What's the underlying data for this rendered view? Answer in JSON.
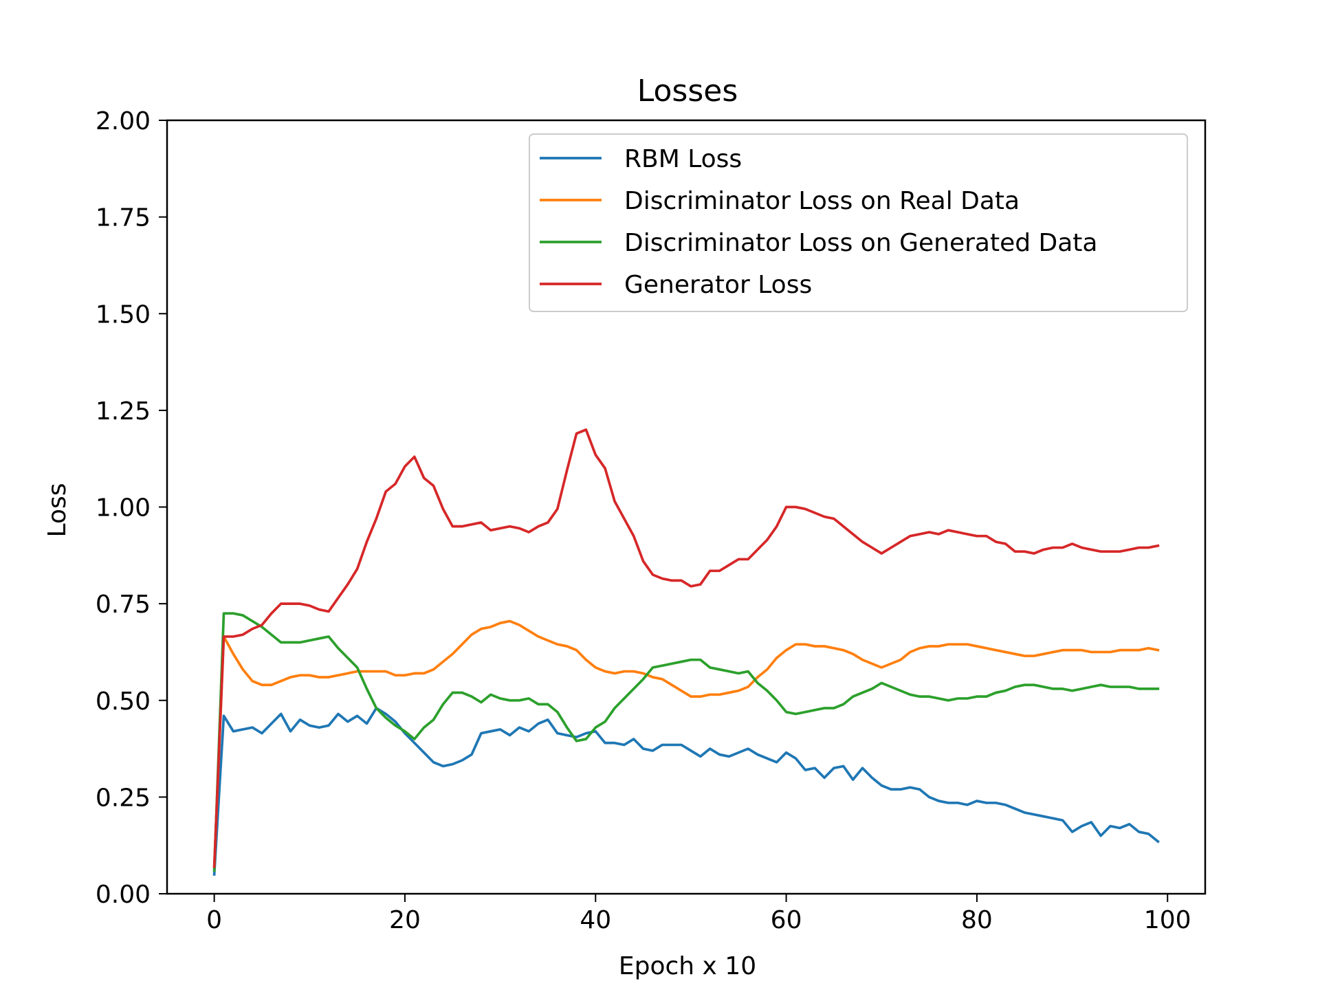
{
  "chart_data": {
    "type": "line",
    "title": "Losses",
    "xlabel": "Epoch x 10",
    "ylabel": "Loss",
    "xlim": [
      -4.95,
      103.95
    ],
    "ylim": [
      0,
      2
    ],
    "xticks": [
      0,
      20,
      40,
      60,
      80,
      100
    ],
    "yticks": [
      0.0,
      0.25,
      0.5,
      0.75,
      1.0,
      1.25,
      1.5,
      1.75,
      2.0
    ],
    "ytick_labels": [
      "0.00",
      "0.25",
      "0.50",
      "0.75",
      "1.00",
      "1.25",
      "1.50",
      "1.75",
      "2.00"
    ],
    "grid": false,
    "legend_position": "upper-right",
    "series": [
      {
        "name": "RBM Loss",
        "color": "#1f77b4",
        "values": [
          0.05,
          0.46,
          0.42,
          0.425,
          0.43,
          0.415,
          0.44,
          0.465,
          0.42,
          0.45,
          0.435,
          0.43,
          0.435,
          0.465,
          0.445,
          0.46,
          0.44,
          0.48,
          0.465,
          0.445,
          0.415,
          0.39,
          0.365,
          0.34,
          0.33,
          0.335,
          0.345,
          0.36,
          0.415,
          0.42,
          0.425,
          0.41,
          0.43,
          0.42,
          0.44,
          0.45,
          0.415,
          0.41,
          0.405,
          0.415,
          0.42,
          0.39,
          0.39,
          0.385,
          0.4,
          0.375,
          0.37,
          0.385,
          0.385,
          0.385,
          0.37,
          0.355,
          0.375,
          0.36,
          0.355,
          0.365,
          0.375,
          0.36,
          0.35,
          0.34,
          0.365,
          0.35,
          0.32,
          0.325,
          0.3,
          0.325,
          0.33,
          0.295,
          0.325,
          0.3,
          0.28,
          0.27,
          0.27,
          0.275,
          0.27,
          0.25,
          0.24,
          0.235,
          0.235,
          0.23,
          0.24,
          0.235,
          0.235,
          0.23,
          0.22,
          0.21,
          0.205,
          0.2,
          0.195,
          0.19,
          0.16,
          0.175,
          0.185,
          0.15,
          0.175,
          0.17,
          0.18,
          0.16,
          0.155,
          0.135
        ]
      },
      {
        "name": "Discriminator Loss on Real Data",
        "color": "#ff7f0e",
        "values": [
          0.07,
          0.665,
          0.62,
          0.58,
          0.55,
          0.54,
          0.54,
          0.55,
          0.56,
          0.565,
          0.565,
          0.56,
          0.56,
          0.565,
          0.57,
          0.575,
          0.575,
          0.575,
          0.575,
          0.565,
          0.565,
          0.57,
          0.57,
          0.58,
          0.6,
          0.62,
          0.645,
          0.67,
          0.685,
          0.69,
          0.7,
          0.705,
          0.695,
          0.68,
          0.665,
          0.655,
          0.645,
          0.64,
          0.63,
          0.605,
          0.585,
          0.575,
          0.57,
          0.575,
          0.575,
          0.57,
          0.56,
          0.555,
          0.54,
          0.525,
          0.51,
          0.51,
          0.515,
          0.515,
          0.52,
          0.525,
          0.535,
          0.56,
          0.58,
          0.61,
          0.63,
          0.645,
          0.645,
          0.64,
          0.64,
          0.635,
          0.63,
          0.62,
          0.605,
          0.595,
          0.585,
          0.595,
          0.605,
          0.625,
          0.635,
          0.64,
          0.64,
          0.645,
          0.645,
          0.645,
          0.64,
          0.635,
          0.63,
          0.625,
          0.62,
          0.615,
          0.615,
          0.62,
          0.625,
          0.63,
          0.63,
          0.63,
          0.625,
          0.625,
          0.625,
          0.63,
          0.63,
          0.63,
          0.635,
          0.63
        ]
      },
      {
        "name": "Discriminator Loss on Generated Data",
        "color": "#2ca02c",
        "values": [
          0.06,
          0.725,
          0.725,
          0.72,
          0.705,
          0.69,
          0.67,
          0.65,
          0.65,
          0.65,
          0.655,
          0.66,
          0.665,
          0.635,
          0.61,
          0.585,
          0.53,
          0.48,
          0.455,
          0.435,
          0.42,
          0.4,
          0.43,
          0.45,
          0.49,
          0.52,
          0.52,
          0.51,
          0.495,
          0.515,
          0.505,
          0.5,
          0.5,
          0.505,
          0.49,
          0.49,
          0.47,
          0.43,
          0.395,
          0.4,
          0.43,
          0.445,
          0.48,
          0.505,
          0.53,
          0.555,
          0.585,
          0.59,
          0.595,
          0.6,
          0.605,
          0.605,
          0.585,
          0.58,
          0.575,
          0.57,
          0.575,
          0.545,
          0.525,
          0.5,
          0.47,
          0.465,
          0.47,
          0.475,
          0.48,
          0.48,
          0.49,
          0.51,
          0.52,
          0.53,
          0.545,
          0.535,
          0.525,
          0.515,
          0.51,
          0.51,
          0.505,
          0.5,
          0.505,
          0.505,
          0.51,
          0.51,
          0.52,
          0.525,
          0.535,
          0.54,
          0.54,
          0.535,
          0.53,
          0.53,
          0.525,
          0.53,
          0.535,
          0.54,
          0.535,
          0.535,
          0.535,
          0.53,
          0.53,
          0.53
        ]
      },
      {
        "name": "Generator Loss",
        "color": "#d62728",
        "values": [
          0.07,
          0.665,
          0.665,
          0.67,
          0.685,
          0.695,
          0.725,
          0.75,
          0.75,
          0.75,
          0.745,
          0.735,
          0.73,
          0.765,
          0.8,
          0.84,
          0.91,
          0.97,
          1.04,
          1.06,
          1.105,
          1.13,
          1.075,
          1.055,
          0.995,
          0.95,
          0.95,
          0.955,
          0.96,
          0.94,
          0.945,
          0.95,
          0.945,
          0.935,
          0.95,
          0.96,
          0.995,
          1.095,
          1.19,
          1.2,
          1.135,
          1.1,
          1.015,
          0.97,
          0.925,
          0.86,
          0.825,
          0.815,
          0.81,
          0.81,
          0.795,
          0.8,
          0.835,
          0.835,
          0.85,
          0.865,
          0.865,
          0.89,
          0.915,
          0.95,
          1.0,
          1.0,
          0.995,
          0.985,
          0.975,
          0.97,
          0.95,
          0.93,
          0.91,
          0.895,
          0.88,
          0.895,
          0.91,
          0.925,
          0.93,
          0.935,
          0.93,
          0.94,
          0.935,
          0.93,
          0.925,
          0.925,
          0.91,
          0.905,
          0.885,
          0.885,
          0.88,
          0.89,
          0.895,
          0.895,
          0.905,
          0.895,
          0.89,
          0.885,
          0.885,
          0.885,
          0.89,
          0.895,
          0.895,
          0.9
        ]
      }
    ]
  }
}
